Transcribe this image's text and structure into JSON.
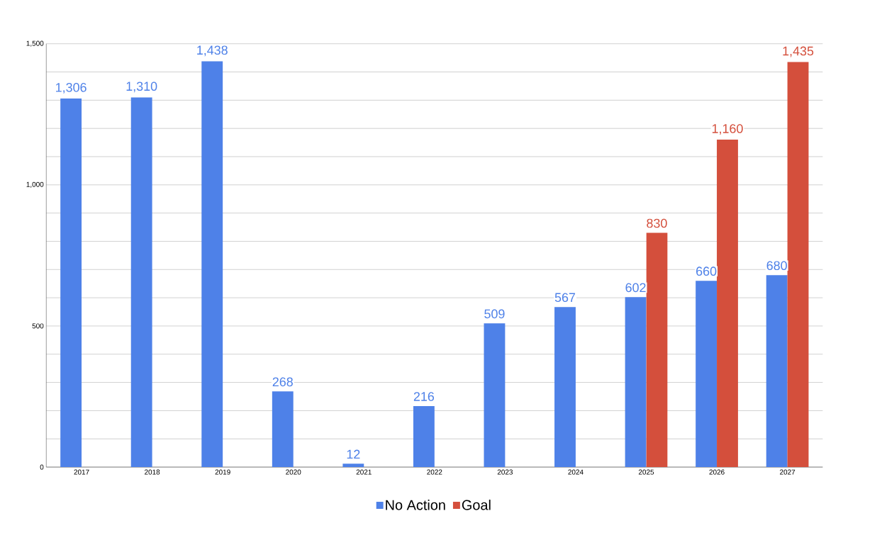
{
  "chart_data": {
    "type": "bar",
    "categories": [
      "2017",
      "2018",
      "2019",
      "2020",
      "2021",
      "2022",
      "2023",
      "2024",
      "2025",
      "2026",
      "2027"
    ],
    "series": [
      {
        "name": "No Action",
        "color": "#4e81e8",
        "values": [
          1306,
          1310,
          1438,
          268,
          12,
          216,
          509,
          567,
          602,
          660,
          680
        ],
        "value_labels": [
          "1,306",
          "1,310",
          "1,438",
          "268",
          "12",
          "216",
          "509",
          "567",
          "602",
          "660",
          "680"
        ]
      },
      {
        "name": "Goal",
        "color": "#d44f3c",
        "values": [
          null,
          null,
          null,
          null,
          null,
          null,
          null,
          null,
          830,
          1160,
          1435
        ],
        "value_labels": [
          null,
          null,
          null,
          null,
          null,
          null,
          null,
          null,
          "830",
          "1,160",
          "1,435"
        ]
      }
    ],
    "ylim": [
      0,
      1500
    ],
    "yticks": [
      {
        "value": 0,
        "label": "0"
      },
      {
        "value": 100,
        "label": null
      },
      {
        "value": 200,
        "label": null
      },
      {
        "value": 300,
        "label": null
      },
      {
        "value": 400,
        "label": null
      },
      {
        "value": 500,
        "label": "500"
      },
      {
        "value": 600,
        "label": null
      },
      {
        "value": 700,
        "label": null
      },
      {
        "value": 800,
        "label": null
      },
      {
        "value": 900,
        "label": null
      },
      {
        "value": 1000,
        "label": "1,000"
      },
      {
        "value": 1100,
        "label": null
      },
      {
        "value": 1200,
        "label": null
      },
      {
        "value": 1300,
        "label": null
      },
      {
        "value": 1400,
        "label": null
      },
      {
        "value": 1500,
        "label": "1,500"
      }
    ],
    "grid": "y",
    "legend": "bottom"
  }
}
